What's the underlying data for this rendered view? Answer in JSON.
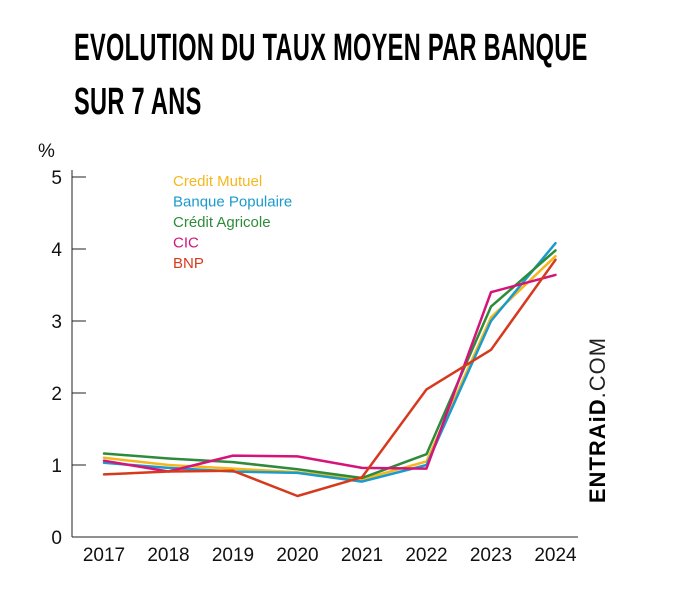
{
  "title_line1": "EVOLUTION DU TAUX MOYEN PAR BANQUE",
  "title_line2": "SUR 7 ANS",
  "brand_bold": "ENTRAiD",
  "brand_light": ".COM",
  "chart_data": {
    "type": "line",
    "title": "EVOLUTION DU TAUX MOYEN PAR BANQUE SUR 7 ANS",
    "ylabel": "%",
    "xlabel": "",
    "ylim": [
      0,
      5
    ],
    "yticks": [
      0,
      1,
      2,
      3,
      4,
      5
    ],
    "categories": [
      "2017",
      "2018",
      "2019",
      "2020",
      "2021",
      "2022",
      "2023",
      "2024"
    ],
    "grid": false,
    "legend_position": "top-left",
    "series": [
      {
        "name": "Credit Mutuel",
        "color": "#f4b81c",
        "values": [
          1.1,
          1.0,
          0.95,
          0.9,
          0.8,
          1.05,
          3.05,
          3.9
        ]
      },
      {
        "name": "Banque Populaire",
        "color": "#1a9bcc",
        "values": [
          1.03,
          0.96,
          0.91,
          0.89,
          0.77,
          1.0,
          3.0,
          4.08
        ]
      },
      {
        "name": "Crédit Agricole",
        "color": "#2e8b3a",
        "values": [
          1.16,
          1.09,
          1.04,
          0.94,
          0.82,
          1.15,
          3.2,
          3.98
        ]
      },
      {
        "name": "CIC",
        "color": "#d4147a",
        "values": [
          1.06,
          0.91,
          1.13,
          1.12,
          0.96,
          0.95,
          3.4,
          3.64
        ]
      },
      {
        "name": "BNP",
        "color": "#d63a1e",
        "values": [
          0.87,
          0.91,
          0.92,
          0.57,
          0.83,
          2.05,
          2.6,
          3.85
        ]
      }
    ]
  }
}
